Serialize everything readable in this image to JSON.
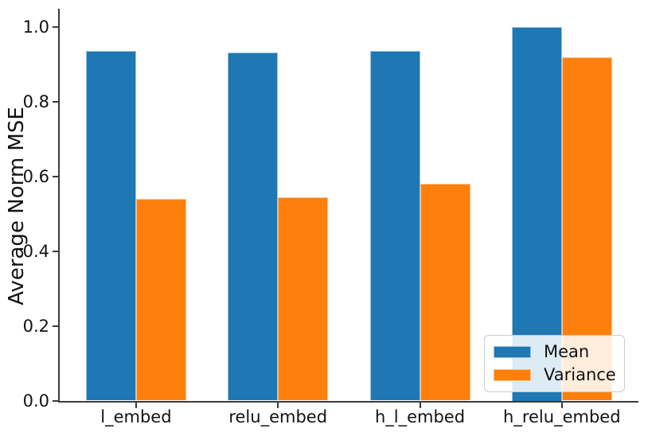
{
  "chart_data": {
    "type": "bar",
    "title": "",
    "categories": [
      "l_embed",
      "relu_embed",
      "h_l_embed",
      "h_relu_embed"
    ],
    "series": [
      {
        "name": "Mean",
        "color": "#1f77b4",
        "edge_color": "#9dc6e0",
        "values": [
          0.937,
          0.932,
          0.937,
          1.0
        ]
      },
      {
        "name": "Variance",
        "color": "#ff7f0e",
        "edge_color": "#ffc488",
        "values": [
          0.54,
          0.545,
          0.58,
          0.92
        ]
      }
    ],
    "xlabel": "",
    "ylabel": "Average Norm MSE",
    "yticks": [
      0.0,
      0.2,
      0.4,
      0.6,
      0.8,
      1.0
    ],
    "ylim": [
      0.0,
      1.047
    ],
    "grid": false,
    "bar_width_frac": 0.355,
    "legend": {
      "position": "lower right",
      "entries": [
        "Mean",
        "Variance"
      ]
    }
  }
}
